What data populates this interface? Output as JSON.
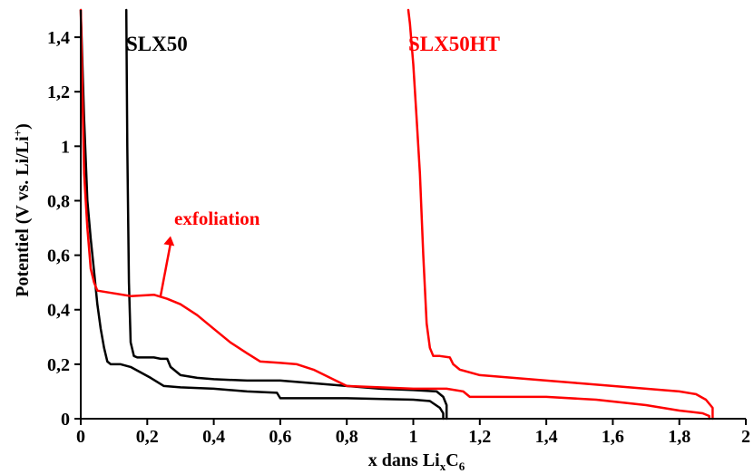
{
  "chart_data": {
    "type": "line",
    "xlabel": "x dans Li",
    "xlabel_sub1": "x",
    "xlabel_mid": "C",
    "xlabel_sub2": "6",
    "ylabel": "Potentiel (V vs. Li/Li",
    "ylabel_sup": "+",
    "ylabel_end": ")",
    "xlim": [
      0,
      2
    ],
    "ylim": [
      0,
      1.5
    ],
    "x_ticks": [
      0,
      0.2,
      0.4,
      0.6,
      0.8,
      1,
      1.2,
      1.4,
      1.6,
      1.8,
      2
    ],
    "x_tick_labels": [
      "0",
      "0,2",
      "0,4",
      "0,6",
      "0,8",
      "1",
      "1,2",
      "1,4",
      "1,6",
      "1,8",
      "2"
    ],
    "y_ticks": [
      0,
      0.2,
      0.4,
      0.6,
      0.8,
      1,
      1.2,
      1.4
    ],
    "y_tick_labels": [
      "0",
      "0,2",
      "0,4",
      "0,6",
      "0,8",
      "1",
      "1,2",
      "1,4"
    ],
    "grid": false,
    "colors": {
      "SLX50": "#000000",
      "SLX50HT": "#ff0000"
    },
    "annotations": [
      {
        "text": "SLX50",
        "color": "#000000"
      },
      {
        "text": "SLX50HT",
        "color": "#ff0000"
      },
      {
        "text": "exfoliation",
        "color": "#ff0000",
        "arrow_from": [
          0.24,
          0.45
        ],
        "arrow_to": [
          0.27,
          0.67
        ]
      }
    ],
    "series": [
      {
        "name": "SLX50",
        "color": "#000000",
        "segments": [
          [
            [
              0.0,
              1.5
            ],
            [
              0.01,
              1.1
            ],
            [
              0.02,
              0.8
            ],
            [
              0.03,
              0.66
            ],
            [
              0.04,
              0.54
            ],
            [
              0.05,
              0.42
            ],
            [
              0.06,
              0.33
            ],
            [
              0.07,
              0.26
            ],
            [
              0.08,
              0.21
            ],
            [
              0.09,
              0.2
            ],
            [
              0.12,
              0.2
            ],
            [
              0.15,
              0.19
            ],
            [
              0.18,
              0.17
            ],
            [
              0.21,
              0.15
            ],
            [
              0.25,
              0.12
            ],
            [
              0.3,
              0.115
            ],
            [
              0.4,
              0.11
            ],
            [
              0.5,
              0.1
            ],
            [
              0.59,
              0.095
            ],
            [
              0.6,
              0.075
            ],
            [
              0.8,
              0.075
            ],
            [
              1.0,
              0.07
            ],
            [
              1.05,
              0.065
            ],
            [
              1.08,
              0.04
            ],
            [
              1.09,
              0.02
            ],
            [
              1.09,
              0.0
            ]
          ],
          [
            [
              1.1,
              0.0
            ],
            [
              1.1,
              0.05
            ],
            [
              1.09,
              0.08
            ],
            [
              1.07,
              0.1
            ],
            [
              1.0,
              0.105
            ],
            [
              0.9,
              0.11
            ],
            [
              0.8,
              0.12
            ],
            [
              0.7,
              0.13
            ],
            [
              0.6,
              0.14
            ],
            [
              0.5,
              0.14
            ],
            [
              0.4,
              0.145
            ],
            [
              0.35,
              0.15
            ],
            [
              0.3,
              0.16
            ],
            [
              0.27,
              0.19
            ],
            [
              0.26,
              0.22
            ],
            [
              0.24,
              0.22
            ],
            [
              0.22,
              0.225
            ],
            [
              0.17,
              0.225
            ],
            [
              0.16,
              0.23
            ],
            [
              0.15,
              0.28
            ],
            [
              0.145,
              0.5
            ],
            [
              0.14,
              1.0
            ],
            [
              0.137,
              1.5
            ]
          ]
        ]
      },
      {
        "name": "SLX50HT",
        "color": "#ff0000",
        "segments": [
          [
            [
              0.0,
              1.5
            ],
            [
              0.005,
              1.2
            ],
            [
              0.01,
              0.9
            ],
            [
              0.02,
              0.7
            ],
            [
              0.03,
              0.55
            ],
            [
              0.04,
              0.5
            ],
            [
              0.05,
              0.47
            ],
            [
              0.1,
              0.46
            ],
            [
              0.15,
              0.45
            ],
            [
              0.22,
              0.455
            ],
            [
              0.26,
              0.44
            ],
            [
              0.3,
              0.42
            ],
            [
              0.35,
              0.38
            ],
            [
              0.4,
              0.33
            ],
            [
              0.45,
              0.28
            ],
            [
              0.5,
              0.24
            ],
            [
              0.54,
              0.21
            ],
            [
              0.6,
              0.205
            ],
            [
              0.65,
              0.2
            ],
            [
              0.7,
              0.18
            ],
            [
              0.75,
              0.15
            ],
            [
              0.8,
              0.12
            ],
            [
              0.9,
              0.115
            ],
            [
              1.0,
              0.11
            ],
            [
              1.1,
              0.11
            ],
            [
              1.15,
              0.1
            ],
            [
              1.17,
              0.08
            ],
            [
              1.2,
              0.08
            ],
            [
              1.4,
              0.08
            ],
            [
              1.55,
              0.07
            ],
            [
              1.7,
              0.05
            ],
            [
              1.8,
              0.03
            ],
            [
              1.87,
              0.02
            ],
            [
              1.89,
              0.01
            ],
            [
              1.89,
              0.0
            ]
          ],
          [
            [
              1.9,
              0.0
            ],
            [
              1.9,
              0.04
            ],
            [
              1.88,
              0.07
            ],
            [
              1.85,
              0.09
            ],
            [
              1.8,
              0.1
            ],
            [
              1.7,
              0.11
            ],
            [
              1.6,
              0.12
            ],
            [
              1.5,
              0.13
            ],
            [
              1.4,
              0.14
            ],
            [
              1.3,
              0.15
            ],
            [
              1.2,
              0.16
            ],
            [
              1.14,
              0.18
            ],
            [
              1.12,
              0.2
            ],
            [
              1.11,
              0.225
            ],
            [
              1.08,
              0.23
            ],
            [
              1.06,
              0.23
            ],
            [
              1.05,
              0.26
            ],
            [
              1.04,
              0.35
            ],
            [
              1.03,
              0.6
            ],
            [
              1.02,
              0.9
            ],
            [
              1.01,
              1.1
            ],
            [
              1.0,
              1.3
            ],
            [
              0.99,
              1.45
            ],
            [
              0.985,
              1.5
            ]
          ]
        ]
      }
    ]
  }
}
